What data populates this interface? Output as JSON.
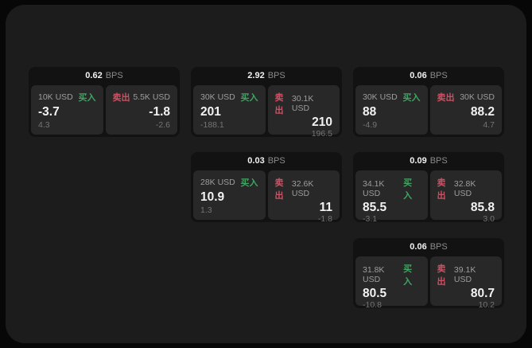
{
  "page": {
    "background": "#070707",
    "surface_color": "#1c1c1c",
    "card_color": "#121212",
    "pane_color": "#282828"
  },
  "labels": {
    "bps_unit": "BPS",
    "buy": "买入",
    "sell": "卖出"
  },
  "colors": {
    "buy_green": "#40a463",
    "sell_red": "#cb5265",
    "value_white": "#f2f2f2",
    "label_gray": "#9d9d9d",
    "delta_gray": "#747474"
  },
  "cards": [
    {
      "row": 1,
      "col": 1,
      "bps": "0.62",
      "buy": {
        "amount": "10K USD",
        "value": "-3.7",
        "delta": "4.3"
      },
      "sell": {
        "amount": "5.5K USD",
        "value": "-1.8",
        "delta": "-2.6"
      }
    },
    {
      "row": 1,
      "col": 2,
      "bps": "2.92",
      "buy": {
        "amount": "30K USD",
        "value": "201",
        "delta": "-188.1"
      },
      "sell": {
        "amount": "30.1K USD",
        "value": "210",
        "delta": "196.5"
      }
    },
    {
      "row": 1,
      "col": 3,
      "bps": "0.06",
      "buy": {
        "amount": "30K USD",
        "value": "88",
        "delta": "-4.9"
      },
      "sell": {
        "amount": "30K USD",
        "value": "88.2",
        "delta": "4.7"
      }
    },
    {
      "row": 2,
      "col": 2,
      "bps": "0.03",
      "buy": {
        "amount": "28K USD",
        "value": "10.9",
        "delta": "1.3"
      },
      "sell": {
        "amount": "32.6K USD",
        "value": "11",
        "delta": "-1.8"
      }
    },
    {
      "row": 2,
      "col": 3,
      "bps": "0.09",
      "buy": {
        "amount": "34.1K USD",
        "value": "85.5",
        "delta": "-3.1"
      },
      "sell": {
        "amount": "32.8K USD",
        "value": "85.8",
        "delta": "3.0"
      }
    },
    {
      "row": 3,
      "col": 3,
      "bps": "0.06",
      "buy": {
        "amount": "31.8K USD",
        "value": "80.5",
        "delta": "-10.8"
      },
      "sell": {
        "amount": "39.1K USD",
        "value": "80.7",
        "delta": "10.2"
      }
    }
  ]
}
